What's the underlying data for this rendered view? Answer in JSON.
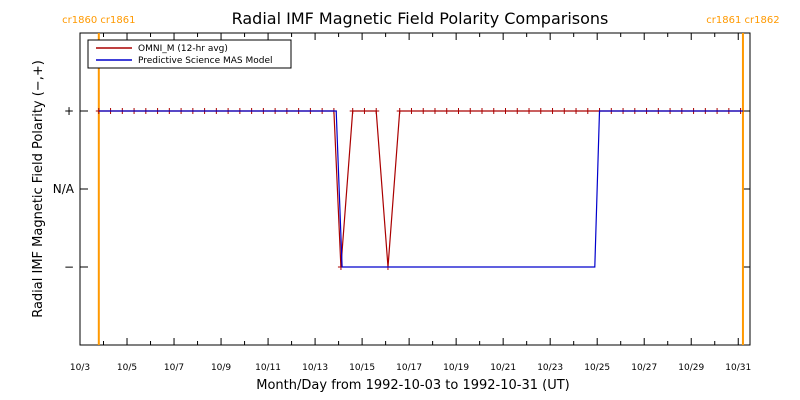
{
  "chart_data": {
    "type": "line",
    "title": "Radial IMF Magnetic Field Polarity Comparisons",
    "xlabel": "Month/Day from 1992-10-03 to 1992-10-31 (UT)",
    "ylabel": "Radial IMF Magnetic Field Polarity (−,+)",
    "x_tick_labels": [
      "10/3",
      "10/5",
      "10/7",
      "10/9",
      "10/11",
      "10/13",
      "10/15",
      "10/17",
      "10/19",
      "10/21",
      "10/23",
      "10/25",
      "10/27",
      "10/29",
      "10/31"
    ],
    "x_ticks_day": [
      3,
      5,
      7,
      9,
      11,
      13,
      15,
      17,
      19,
      21,
      23,
      25,
      27,
      29,
      31
    ],
    "xlim_day": [
      3,
      31.5
    ],
    "y_ticks": [
      {
        "value": 1,
        "label": "+"
      },
      {
        "value": 0,
        "label": "N/A"
      },
      {
        "value": -1,
        "label": "−"
      }
    ],
    "ylim": [
      -2,
      2
    ],
    "legend_position": "top-left",
    "series": [
      {
        "name": "OMNI_M (12-hr avg)",
        "color": "#aa0000",
        "marker": "plus",
        "points": [
          [
            3.8,
            1
          ],
          [
            4.3,
            1
          ],
          [
            4.8,
            1
          ],
          [
            5.3,
            1
          ],
          [
            5.8,
            1
          ],
          [
            6.3,
            1
          ],
          [
            6.8,
            1
          ],
          [
            7.3,
            1
          ],
          [
            7.8,
            1
          ],
          [
            8.3,
            1
          ],
          [
            8.8,
            1
          ],
          [
            9.3,
            1
          ],
          [
            9.8,
            1
          ],
          [
            10.3,
            1
          ],
          [
            10.8,
            1
          ],
          [
            11.3,
            1
          ],
          [
            11.8,
            1
          ],
          [
            12.3,
            1
          ],
          [
            12.8,
            1
          ],
          [
            13.3,
            1
          ],
          [
            13.8,
            1
          ],
          [
            14.1,
            -1
          ],
          [
            14.6,
            1
          ],
          [
            15.1,
            1
          ],
          [
            15.6,
            1
          ],
          [
            16.1,
            -1
          ],
          [
            16.6,
            1
          ],
          [
            17.1,
            1
          ],
          [
            17.6,
            1
          ],
          [
            18.1,
            1
          ],
          [
            18.6,
            1
          ],
          [
            19.1,
            1
          ],
          [
            19.6,
            1
          ],
          [
            20.1,
            1
          ],
          [
            20.6,
            1
          ],
          [
            21.1,
            1
          ],
          [
            21.6,
            1
          ],
          [
            22.1,
            1
          ],
          [
            22.6,
            1
          ],
          [
            23.1,
            1
          ],
          [
            23.6,
            1
          ],
          [
            24.1,
            1
          ],
          [
            24.6,
            1
          ],
          [
            25.1,
            1
          ],
          [
            25.6,
            1
          ],
          [
            26.1,
            1
          ],
          [
            26.6,
            1
          ],
          [
            27.1,
            1
          ],
          [
            27.6,
            1
          ],
          [
            28.1,
            1
          ],
          [
            28.6,
            1
          ],
          [
            29.1,
            1
          ],
          [
            29.6,
            1
          ],
          [
            30.1,
            1
          ],
          [
            30.6,
            1
          ],
          [
            31.1,
            1
          ]
        ]
      },
      {
        "name": "Predictive Science MAS Model",
        "color": "#0000cc",
        "marker": "none",
        "points": [
          [
            3.8,
            1
          ],
          [
            13.9,
            1
          ],
          [
            14.15,
            -1
          ],
          [
            24.9,
            -1
          ],
          [
            25.1,
            1
          ],
          [
            31.2,
            1
          ]
        ]
      }
    ],
    "vertical_markers": [
      {
        "day": 3.8,
        "color": "#ff9900",
        "labels": [
          "cr1860",
          "cr1861"
        ]
      },
      {
        "day": 31.2,
        "color": "#ff9900",
        "labels": [
          "cr1861",
          "cr1862"
        ]
      }
    ]
  }
}
